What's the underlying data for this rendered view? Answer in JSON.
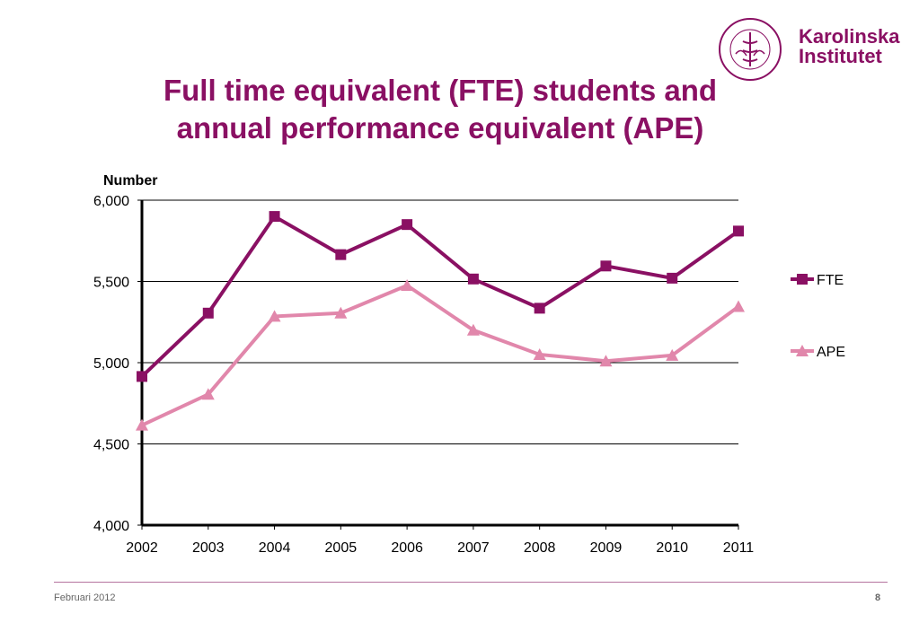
{
  "slide": {
    "title_line1": "Full time equivalent (FTE) students and",
    "title_line2": "annual performance equivalent (APE)",
    "logo_line1": "Karolinska",
    "logo_line2": "Institutet",
    "seal_text": "KAROLINSKA INSTITUTET ANNO 1810",
    "footer_left": "Februari 2012",
    "page_number": "8",
    "accent_color": "#8a1063"
  },
  "chart_data": {
    "type": "line",
    "title": "",
    "ylabel": "Number",
    "xlabel": "",
    "x": [
      "2002",
      "2003",
      "2004",
      "2005",
      "2006",
      "2007",
      "2008",
      "2009",
      "2010",
      "2011"
    ],
    "ylim": [
      4000,
      6000
    ],
    "yticks": [
      4000,
      4500,
      5000,
      5500,
      6000
    ],
    "ytick_labels": [
      "4,000",
      "4,500",
      "5,000",
      "5,500",
      "6,000"
    ],
    "grid": true,
    "legend": "right",
    "series": [
      {
        "name": "FTE",
        "color": "#8a1063",
        "marker": "square",
        "values": [
          4915,
          5305,
          5900,
          5665,
          5850,
          5515,
          5335,
          5595,
          5520,
          5810
        ]
      },
      {
        "name": "APE",
        "color": "#e187ab",
        "marker": "triangle",
        "values": [
          4615,
          4805,
          5285,
          5305,
          5475,
          5200,
          5050,
          5010,
          5045,
          5345
        ]
      }
    ]
  }
}
